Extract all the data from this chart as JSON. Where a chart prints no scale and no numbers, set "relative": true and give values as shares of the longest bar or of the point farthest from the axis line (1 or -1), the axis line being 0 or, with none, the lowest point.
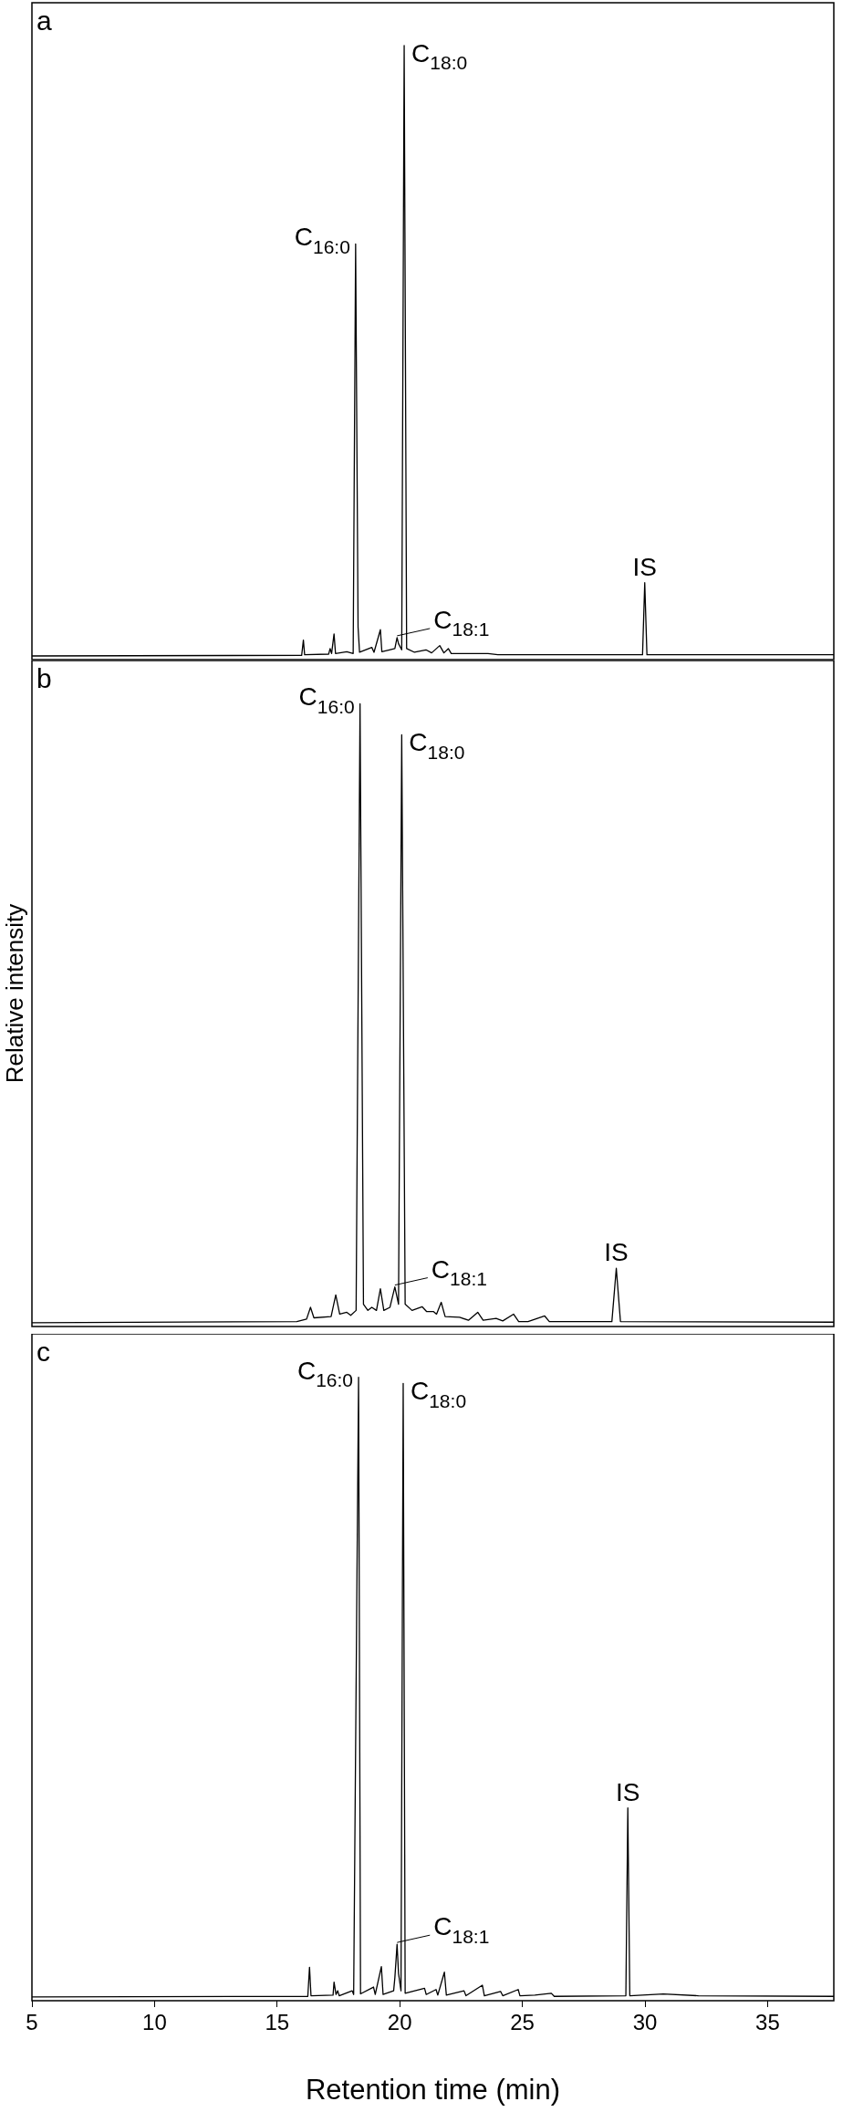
{
  "chart_data": [
    {
      "type": "line",
      "relative": true,
      "xlim": [
        5,
        37.7
      ],
      "xticks": [
        5,
        10,
        15,
        20,
        25,
        30,
        35
      ],
      "tick_labels": false,
      "legend": false,
      "grid": false,
      "series": [
        {
          "color": "#000000",
          "x": [
            5,
            16.0,
            16.07,
            16.12,
            17.1,
            17.16,
            17.22,
            17.32,
            17.38,
            17.84,
            18.1,
            18.2,
            18.3,
            18.36,
            18.86,
            18.95,
            19.21,
            19.27,
            19.58,
            19.8,
            19.89,
            19.95,
            20.08,
            20.18,
            20.28,
            20.6,
            21.07,
            21.3,
            21.63,
            21.8,
            21.98,
            22.1,
            23.6,
            24.0,
            26.0,
            29.9,
            29.99,
            30.08,
            37.7
          ],
          "values": [
            0,
            0.001,
            0.026,
            0.002,
            0.003,
            0.012,
            0.004,
            0.036,
            0.004,
            0.007,
            0.004,
            0.675,
            0.047,
            0.006,
            0.014,
            0.006,
            0.043,
            0.007,
            0.01,
            0.012,
            0.03,
            0.02,
            0.01,
            1,
            0.012,
            0.006,
            0.01,
            0.005,
            0.017,
            0.005,
            0.012,
            0.004,
            0.004,
            0.002,
            0.002,
            0.002,
            0.12,
            0.002,
            0.002
          ]
        }
      ],
      "annotations": [
        "a",
        {
          "text": "C$_{16:0}$",
          "x": 18.2,
          "y": 0.675
        },
        {
          "text": "C$_{18:0}$",
          "x": 20.18,
          "y": 1
        },
        {
          "text": "C$_{18:1}$",
          "x": 19.89,
          "y": 0.03
        },
        {
          "text": "IS",
          "x": 29.99,
          "y": 0.12
        }
      ]
    },
    {
      "type": "line",
      "relative": true,
      "xlim": [
        5,
        37.7
      ],
      "xticks": [
        5,
        10,
        15,
        20,
        25,
        30,
        35
      ],
      "tick_labels": false,
      "legend": false,
      "grid": false,
      "ylabel": "Relative intensity",
      "series": [
        {
          "color": "#000000",
          "x": [
            5,
            15.8,
            16.2,
            16.36,
            16.5,
            17.2,
            17.39,
            17.55,
            17.84,
            18.0,
            18.22,
            18.38,
            18.52,
            18.7,
            18.86,
            19.05,
            19.21,
            19.35,
            19.6,
            19.8,
            19.95,
            20.08,
            20.22,
            20.5,
            20.91,
            21.1,
            21.38,
            21.5,
            21.69,
            21.85,
            22.44,
            22.8,
            23.18,
            23.4,
            23.93,
            24.2,
            24.64,
            24.85,
            25.23,
            25.91,
            26.1,
            27.15,
            28.65,
            28.83,
            29.0,
            37.7
          ],
          "values": [
            0,
            0.002,
            0.006,
            0.025,
            0.008,
            0.01,
            0.045,
            0.014,
            0.017,
            0.012,
            0.02,
            1,
            0.03,
            0.02,
            0.025,
            0.02,
            0.055,
            0.02,
            0.025,
            0.058,
            0.03,
            0.95,
            0.03,
            0.02,
            0.026,
            0.018,
            0.018,
            0.014,
            0.033,
            0.01,
            0.009,
            0.004,
            0.017,
            0.004,
            0.007,
            0.003,
            0.014,
            0.002,
            0.002,
            0.011,
            0.002,
            0.002,
            0.002,
            0.088,
            0.002,
            0.001
          ]
        }
      ],
      "annotations": [
        "b",
        {
          "text": "C$_{16:0}$",
          "x": 18.38,
          "y": 1
        },
        {
          "text": "C$_{18:0}$",
          "x": 20.08,
          "y": 0.95
        },
        {
          "text": "C$_{18:1}$",
          "x": 19.8,
          "y": 0.058
        },
        {
          "text": "IS",
          "x": 28.83,
          "y": 0.088
        }
      ]
    },
    {
      "type": "line",
      "relative": true,
      "xlim": [
        5,
        37.7
      ],
      "xticks": [
        5,
        10,
        15,
        20,
        25,
        30,
        35
      ],
      "tick_labels": "x",
      "legend": false,
      "grid": false,
      "xlabel": "Retention time (min)",
      "series": [
        {
          "color": "#000000",
          "x": [
            5,
            16.25,
            16.32,
            16.38,
            17.28,
            17.32,
            17.4,
            17.47,
            17.53,
            18.06,
            18.12,
            18.32,
            18.4,
            18.93,
            19.0,
            19.25,
            19.32,
            19.75,
            19.8,
            19.89,
            19.95,
            20.05,
            20.14,
            20.22,
            21.01,
            21.08,
            21.48,
            21.55,
            21.82,
            21.9,
            22.62,
            22.7,
            23.37,
            23.45,
            24.11,
            24.2,
            24.83,
            24.9,
            25.51,
            26.18,
            26.3,
            29.22,
            29.3,
            29.38,
            30.75,
            32.18,
            37.7
          ],
          "values": [
            0,
            0.001,
            0.048,
            0.002,
            0.003,
            0.024,
            0.004,
            0.01,
            0.002,
            0.01,
            0.004,
            1,
            0.005,
            0.016,
            0.004,
            0.049,
            0.004,
            0.01,
            0.031,
            0.085,
            0.038,
            0.01,
            0.99,
            0.006,
            0.014,
            0.004,
            0.012,
            0.003,
            0.04,
            0.003,
            0.01,
            0.002,
            0.019,
            0.002,
            0.009,
            0.002,
            0.012,
            0.002,
            0.003,
            0.006,
            0.001,
            0.002,
            0.305,
            0.002,
            0.005,
            0.002,
            0.001
          ]
        }
      ],
      "annotations": [
        "c",
        {
          "text": "C$_{16:0}$",
          "x": 18.32,
          "y": 1
        },
        {
          "text": "C$_{18:0}$",
          "x": 20.14,
          "y": 0.99
        },
        {
          "text": "C$_{18:1}$",
          "x": 19.89,
          "y": 0.085
        },
        {
          "text": "IS",
          "x": 29.3,
          "y": 0.305
        }
      ]
    }
  ]
}
